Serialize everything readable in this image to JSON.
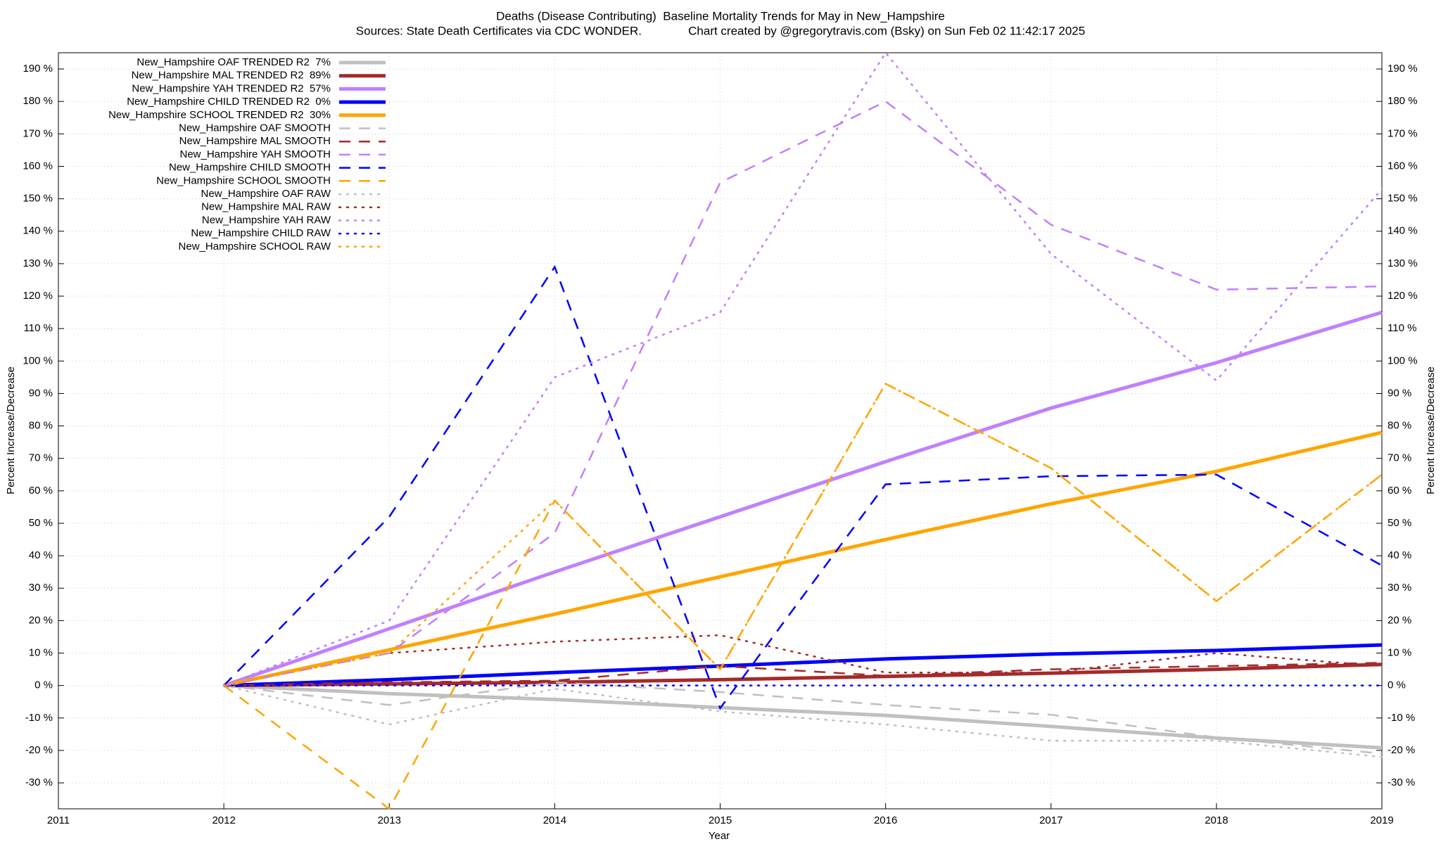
{
  "chart_data": {
    "type": "line",
    "title": "Deaths (Disease Contributing)  Baseline Mortality Trends for May in New_Hampshire",
    "subtitle": "Sources: State Death Certificates via CDC WONDER.              Chart created by @gregorytravis.com (Bsky) on Sun Feb 02 11:42:17 2025",
    "xlabel": "Year",
    "ylabel": "Percent Increase/Decrease",
    "x": [
      2012,
      2013,
      2014,
      2015,
      2016,
      2017,
      2018,
      2019
    ],
    "xlim": [
      2011,
      2019
    ],
    "xticks": [
      2011,
      2012,
      2013,
      2014,
      2015,
      2016,
      2017,
      2018,
      2019
    ],
    "ylim": [
      -38,
      195
    ],
    "yticks": [
      {
        "value": -30,
        "label": "-30 %"
      },
      {
        "value": -20,
        "label": "-20 %"
      },
      {
        "value": -10,
        "label": "-10 %"
      },
      {
        "value": 0,
        "label": "0 %"
      },
      {
        "value": 10,
        "label": "10 %"
      },
      {
        "value": 20,
        "label": "20 %"
      },
      {
        "value": 30,
        "label": "30 %"
      },
      {
        "value": 40,
        "label": "40 %"
      },
      {
        "value": 50,
        "label": "50 %"
      },
      {
        "value": 60,
        "label": "60 %"
      },
      {
        "value": 70,
        "label": "70 %"
      },
      {
        "value": 80,
        "label": "80 %"
      },
      {
        "value": 90,
        "label": "90 %"
      },
      {
        "value": 100,
        "label": "100 %"
      },
      {
        "value": 110,
        "label": "110 %"
      },
      {
        "value": 120,
        "label": "120 %"
      },
      {
        "value": 130,
        "label": "130 %"
      },
      {
        "value": 140,
        "label": "140 %"
      },
      {
        "value": 150,
        "label": "150 %"
      },
      {
        "value": 160,
        "label": "160 %"
      },
      {
        "value": 170,
        "label": "170 %"
      },
      {
        "value": 180,
        "label": "180 %"
      },
      {
        "value": 190,
        "label": "190 %"
      }
    ],
    "grid": true,
    "legend": "top-left",
    "series": [
      {
        "name": "New_Hampshire OAF TRENDED R2  7%",
        "color": "#c0c0c0",
        "style": "solid",
        "values": [
          0,
          -2.5,
          -4.3,
          -6.8,
          -9.2,
          -12.6,
          -16.2,
          -19.2
        ]
      },
      {
        "name": "New_Hampshire MAL TRENDED R2  89%",
        "color": "#a52a2a",
        "style": "solid",
        "values": [
          0,
          0.5,
          1,
          1.8,
          2.8,
          3.8,
          5,
          6.5
        ]
      },
      {
        "name": "New_Hampshire YAH TRENDED R2  57%",
        "color": "#c080ff",
        "style": "solid",
        "values": [
          0,
          17.5,
          35,
          52,
          69,
          85.5,
          99.5,
          115
        ]
      },
      {
        "name": "New_Hampshire CHILD TRENDED R2  0%",
        "color": "#0000ff",
        "style": "solid",
        "values": [
          0,
          1.8,
          4,
          6,
          8.2,
          9.7,
          10.8,
          12.5
        ]
      },
      {
        "name": "New_Hampshire SCHOOL TRENDED R2  30%",
        "color": "#ffa500",
        "style": "solid",
        "values": [
          0,
          11,
          22,
          33.5,
          45,
          56,
          66,
          78
        ]
      },
      {
        "name": "New_Hampshire OAF SMOOTH",
        "color": "#c0c0c0",
        "style": "dashed",
        "values": [
          0,
          -6,
          1,
          -2,
          -6,
          -9,
          -16,
          -21
        ]
      },
      {
        "name": "New_Hampshire MAL SMOOTH",
        "color": "#a52a2a",
        "style": "dashed",
        "values": [
          0,
          1,
          1.5,
          6,
          3,
          5,
          6,
          7
        ]
      },
      {
        "name": "New_Hampshire YAH SMOOTH",
        "color": "#c080ff",
        "style": "dashed",
        "values": [
          0,
          10,
          47,
          155,
          180,
          142,
          122,
          123
        ]
      },
      {
        "name": "New_Hampshire CHILD SMOOTH",
        "color": "#0000ff",
        "style": "dashed",
        "values": [
          0,
          52,
          129,
          -7,
          62,
          64.5,
          65,
          37
        ]
      },
      {
        "name": "New_Hampshire SCHOOL SMOOTH",
        "color": "#ffa500",
        "style": "dashed",
        "values": [
          0,
          -38,
          57,
          5,
          93,
          67,
          26,
          65
        ]
      },
      {
        "name": "New_Hampshire OAF RAW",
        "color": "#c0c0c0",
        "style": "dotted",
        "values": [
          0,
          -12,
          -1,
          -8,
          -12,
          -17,
          -17,
          -22
        ]
      },
      {
        "name": "New_Hampshire MAL RAW",
        "color": "#a52a2a",
        "style": "dotted",
        "values": [
          0,
          10,
          13.5,
          15.5,
          4,
          4,
          10,
          6
        ]
      },
      {
        "name": "New_Hampshire YAH RAW",
        "color": "#c080ff",
        "style": "dotted",
        "values": [
          0,
          20,
          95,
          115,
          195,
          133,
          94,
          153
        ]
      },
      {
        "name": "New_Hampshire CHILD RAW",
        "color": "#0000ff",
        "style": "dotted",
        "values": [
          0,
          0,
          0,
          0,
          0,
          0,
          0,
          0
        ]
      },
      {
        "name": "New_Hampshire SCHOOL RAW",
        "color": "#ffa500",
        "style": "dotted",
        "values": [
          0,
          10,
          57,
          5,
          93,
          67,
          26,
          65
        ]
      }
    ]
  }
}
